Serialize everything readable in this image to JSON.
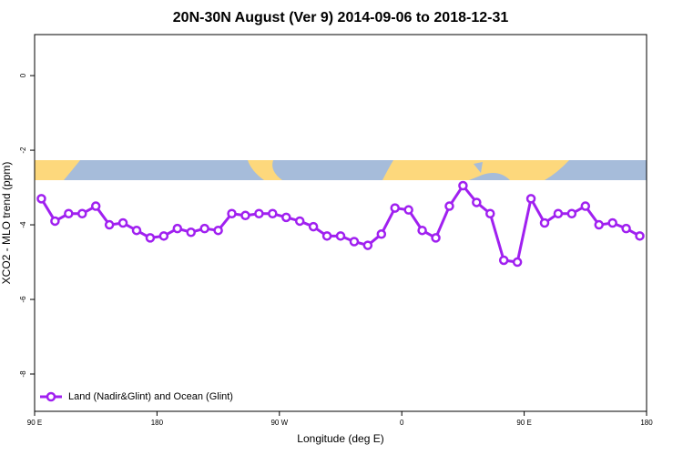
{
  "chart_data": {
    "type": "line",
    "title": "20N-30N August (Ver 9)   2014-09-06 to 2018-12-31",
    "x_label": "Longitude (deg E)",
    "y_label": "XCO2 - MLO trend (ppm)",
    "x": [
      95,
      105,
      115,
      125,
      135,
      145,
      155,
      165,
      175,
      185,
      195,
      205,
      215,
      225,
      235,
      245,
      255,
      265,
      275,
      285,
      295,
      305,
      315,
      325,
      335,
      345,
      355,
      365,
      375,
      385,
      395,
      405,
      415,
      425,
      435,
      445,
      455,
      465,
      475,
      485,
      495,
      505,
      515,
      525,
      535
    ],
    "series": [
      {
        "name": "Land (Nadir&Glint) and Ocean (Glint)",
        "color": "#a020f0",
        "values": [
          -3.3,
          -3.9,
          -3.7,
          -3.7,
          -3.5,
          -4.0,
          -3.95,
          -4.15,
          -4.35,
          -4.3,
          -4.1,
          -4.2,
          -4.1,
          -4.15,
          -3.7,
          -3.75,
          -3.7,
          -3.7,
          -3.8,
          -3.9,
          -4.05,
          -4.3,
          -4.3,
          -4.45,
          -4.55,
          -4.25,
          -3.55,
          -3.6,
          -4.15,
          -4.35,
          -3.5,
          -2.95,
          -3.4,
          -3.7,
          -4.95,
          -5.0,
          -3.3,
          -3.95,
          -3.7,
          -3.7,
          -3.5,
          -4.0,
          -3.95,
          -4.1,
          -4.3
        ]
      }
    ],
    "xlim": [
      90,
      540
    ],
    "xticks": [
      {
        "value": 90,
        "label": "90 E"
      },
      180,
      {
        "value": 270,
        "label": "90 W"
      },
      {
        "value": 360,
        "label": "0"
      },
      {
        "value": 450,
        "label": "90 E"
      },
      {
        "value": 540,
        "label": "180"
      }
    ],
    "ylim": [
      -9,
      1.1
    ],
    "yticks": [
      0,
      -2,
      -4,
      -6,
      -8
    ],
    "legend": "bottom-left"
  }
}
